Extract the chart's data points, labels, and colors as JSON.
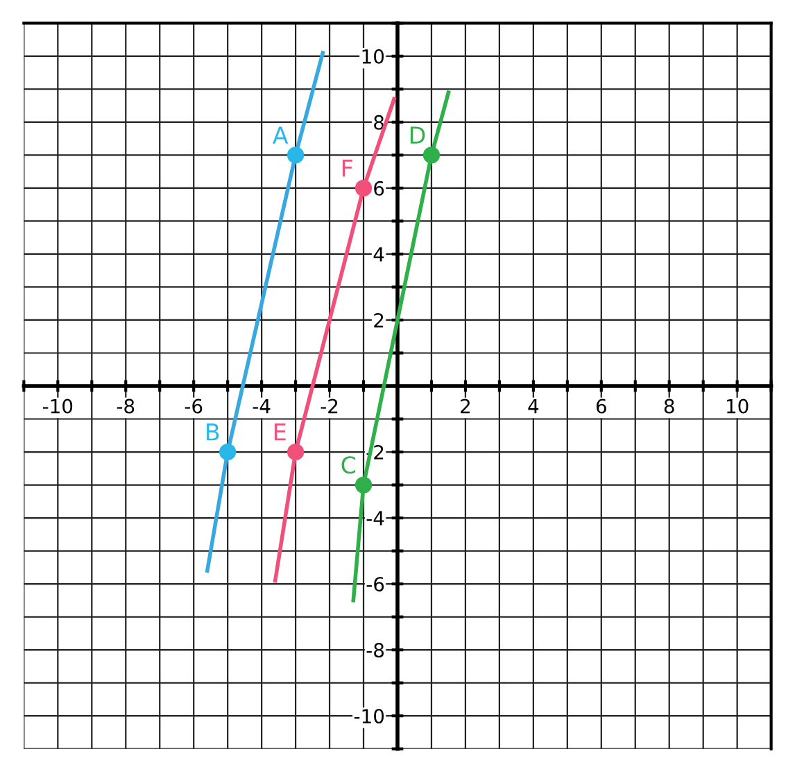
{
  "chart_data": {
    "type": "line",
    "series": [
      {
        "color": "#3aa8e0",
        "x": [
          -5.6,
          -5,
          -3,
          -2.2
        ],
        "values": [
          -5.6,
          -2,
          7,
          10.1
        ]
      },
      {
        "color": "#f0507a",
        "x": [
          -3.6,
          -3,
          -1,
          -0.1
        ],
        "values": [
          -5.9,
          -2,
          6,
          8.7
        ]
      },
      {
        "color": "#2fb04a",
        "x": [
          -1.3,
          -1,
          1,
          1.5
        ],
        "values": [
          -6.5,
          -3,
          7,
          8.9
        ]
      },
      {
        "type": "scatter",
        "color": "#29b6e8",
        "marker": "circle",
        "x": [
          -3,
          -5
        ],
        "values": [
          7,
          -2
        ]
      },
      {
        "type": "scatter",
        "color": "#f0507a",
        "marker": "circle",
        "x": [
          -1,
          -3
        ],
        "values": [
          6,
          -2
        ]
      },
      {
        "type": "scatter",
        "color": "#2fb04a",
        "marker": "circle",
        "x": [
          -1,
          1
        ],
        "values": [
          -3,
          7
        ]
      }
    ],
    "annotations": [
      {
        "text": "A",
        "x": -3,
        "y": 7
      },
      {
        "text": "B",
        "x": -5,
        "y": -2
      },
      {
        "text": "C",
        "x": -1,
        "y": -3
      },
      {
        "text": "D",
        "x": 1,
        "y": 7
      },
      {
        "text": "E",
        "x": -3,
        "y": -2
      },
      {
        "text": "F",
        "x": -1,
        "y": 6
      }
    ],
    "xlim": [
      -11,
      11
    ],
    "ylim": [
      -11,
      11
    ],
    "xticks": [
      {
        "value": -11,
        "label": null
      },
      -10,
      {
        "value": -9,
        "label": null
      },
      -8,
      {
        "value": -7,
        "label": null
      },
      -6,
      {
        "value": -5,
        "label": null
      },
      -4,
      {
        "value": -3,
        "label": null
      },
      -2,
      {
        "value": -1,
        "label": null
      },
      {
        "value": 0,
        "label": null
      },
      {
        "value": 1,
        "label": null
      },
      2,
      {
        "value": 3,
        "label": null
      },
      4,
      {
        "value": 5,
        "label": null
      },
      6,
      {
        "value": 7,
        "label": null
      },
      8,
      {
        "value": 9,
        "label": null
      },
      10,
      {
        "value": 11,
        "label": null
      }
    ],
    "yticks": [
      {
        "value": -11,
        "label": null
      },
      -10,
      {
        "value": -9,
        "label": null
      },
      -8,
      {
        "value": -7,
        "label": null
      },
      -6,
      {
        "value": -5,
        "label": null
      },
      -4,
      {
        "value": -3,
        "label": null
      },
      -2,
      {
        "value": -1,
        "label": null
      },
      {
        "value": 0,
        "label": null
      },
      {
        "value": 1,
        "label": null
      },
      2,
      {
        "value": 3,
        "label": null
      },
      4,
      {
        "value": 5,
        "label": null
      },
      6,
      {
        "value": 7,
        "label": null
      },
      8,
      {
        "value": 9,
        "label": null
      },
      10,
      {
        "value": 11,
        "label": null
      }
    ],
    "grid": true
  }
}
